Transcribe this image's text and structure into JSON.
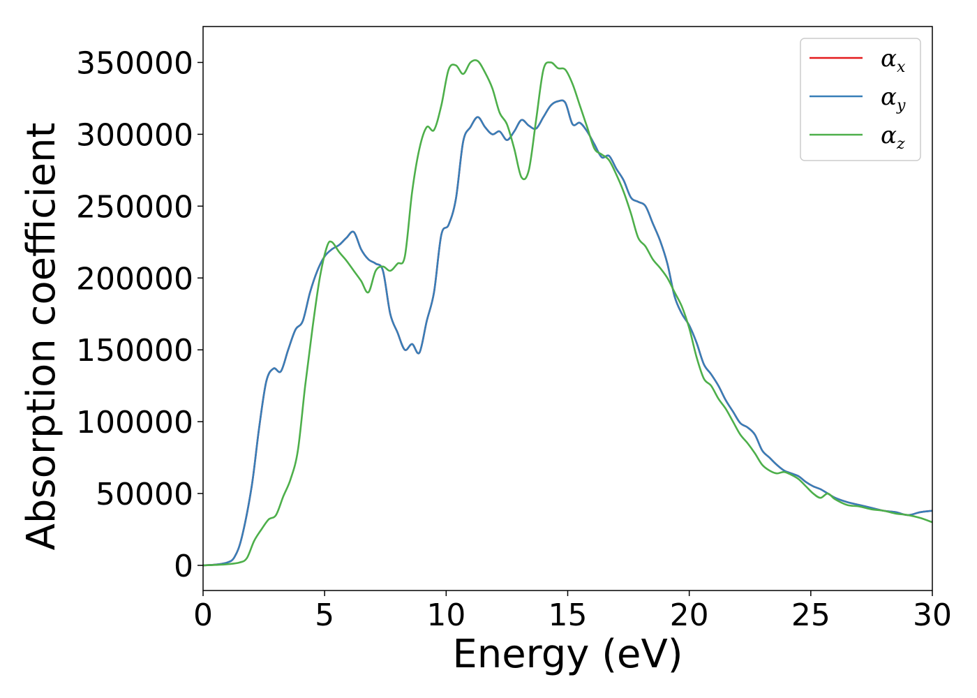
{
  "chart_data": {
    "type": "line",
    "title": "",
    "xlabel": "Energy (eV)",
    "ylabel": "Absorption coefficient",
    "xlim": [
      0,
      30
    ],
    "ylim": [
      -17500,
      375000
    ],
    "xticks": [
      0,
      5,
      10,
      15,
      20,
      25,
      30
    ],
    "yticks": [
      0,
      50000,
      100000,
      150000,
      200000,
      250000,
      300000,
      350000
    ],
    "grid": false,
    "legend_position": "top-right",
    "series": [
      {
        "name": "α_x",
        "symbol": "α",
        "subscript": "x",
        "color": "#e41a1c",
        "x": [
          0,
          0.5,
          1,
          1.3,
          1.6,
          2,
          2.3,
          2.6,
          2.9,
          3.2,
          3.5,
          3.8,
          4.1,
          4.4,
          4.7,
          5,
          5.3,
          5.6,
          5.9,
          6.2,
          6.5,
          6.8,
          7.1,
          7.4,
          7.7,
          8,
          8.3,
          8.6,
          8.9,
          9.2,
          9.5,
          9.8,
          10.1,
          10.4,
          10.7,
          11,
          11.3,
          11.6,
          11.9,
          12.2,
          12.5,
          12.8,
          13.1,
          13.4,
          13.7,
          14,
          14.3,
          14.6,
          14.9,
          15.2,
          15.5,
          15.8,
          16.1,
          16.4,
          16.7,
          17,
          17.3,
          17.6,
          17.9,
          18.2,
          18.5,
          18.8,
          19.1,
          19.4,
          19.7,
          20,
          20.3,
          20.6,
          20.9,
          21.2,
          21.5,
          21.8,
          22.1,
          22.4,
          22.7,
          23,
          23.3,
          23.6,
          23.9,
          24.2,
          24.5,
          24.8,
          25.1,
          25.4,
          25.7,
          26,
          26.5,
          27,
          27.5,
          28,
          28.5,
          29,
          29.5,
          30
        ],
        "values": [
          0,
          500,
          2000,
          6000,
          20000,
          55000,
          95000,
          128000,
          137000,
          135000,
          150000,
          164000,
          170000,
          190000,
          205000,
          215000,
          220000,
          223000,
          228000,
          232000,
          220000,
          213000,
          210000,
          205000,
          175000,
          162000,
          150000,
          154000,
          148000,
          170000,
          190000,
          230000,
          237000,
          255000,
          295000,
          305000,
          312000,
          305000,
          300000,
          302000,
          296000,
          302000,
          310000,
          306000,
          304000,
          312000,
          320000,
          323000,
          322000,
          307000,
          308000,
          302000,
          293000,
          284000,
          285000,
          276000,
          268000,
          256000,
          253000,
          250000,
          238000,
          226000,
          210000,
          187000,
          175000,
          167000,
          155000,
          140000,
          133000,
          125000,
          115000,
          107000,
          99000,
          96000,
          91000,
          80000,
          75000,
          70000,
          66000,
          64000,
          62000,
          58000,
          55000,
          53000,
          50000,
          47000,
          44000,
          42000,
          40000,
          38000,
          37000,
          35000,
          37000,
          38000
        ]
      },
      {
        "name": "α_y",
        "symbol": "α",
        "subscript": "y",
        "color": "#377eb8",
        "x": [
          0,
          0.5,
          1,
          1.3,
          1.6,
          2,
          2.3,
          2.6,
          2.9,
          3.2,
          3.5,
          3.8,
          4.1,
          4.4,
          4.7,
          5,
          5.3,
          5.6,
          5.9,
          6.2,
          6.5,
          6.8,
          7.1,
          7.4,
          7.7,
          8,
          8.3,
          8.6,
          8.9,
          9.2,
          9.5,
          9.8,
          10.1,
          10.4,
          10.7,
          11,
          11.3,
          11.6,
          11.9,
          12.2,
          12.5,
          12.8,
          13.1,
          13.4,
          13.7,
          14,
          14.3,
          14.6,
          14.9,
          15.2,
          15.5,
          15.8,
          16.1,
          16.4,
          16.7,
          17,
          17.3,
          17.6,
          17.9,
          18.2,
          18.5,
          18.8,
          19.1,
          19.4,
          19.7,
          20,
          20.3,
          20.6,
          20.9,
          21.2,
          21.5,
          21.8,
          22.1,
          22.4,
          22.7,
          23,
          23.3,
          23.6,
          23.9,
          24.2,
          24.5,
          24.8,
          25.1,
          25.4,
          25.7,
          26,
          26.5,
          27,
          27.5,
          28,
          28.5,
          29,
          29.5,
          30
        ],
        "values": [
          0,
          500,
          2000,
          6000,
          20000,
          55000,
          95000,
          128000,
          137000,
          135000,
          150000,
          164000,
          170000,
          190000,
          205000,
          215000,
          220000,
          223000,
          228000,
          232000,
          220000,
          213000,
          210000,
          205000,
          175000,
          162000,
          150000,
          154000,
          148000,
          170000,
          190000,
          230000,
          237000,
          255000,
          295000,
          305000,
          312000,
          305000,
          300000,
          302000,
          296000,
          302000,
          310000,
          306000,
          304000,
          312000,
          320000,
          323000,
          322000,
          307000,
          308000,
          302000,
          293000,
          284000,
          285000,
          276000,
          268000,
          256000,
          253000,
          250000,
          238000,
          226000,
          210000,
          187000,
          175000,
          167000,
          155000,
          140000,
          133000,
          125000,
          115000,
          107000,
          99000,
          96000,
          91000,
          80000,
          75000,
          70000,
          66000,
          64000,
          62000,
          58000,
          55000,
          53000,
          50000,
          47000,
          44000,
          42000,
          40000,
          38000,
          37000,
          35000,
          37000,
          38000
        ]
      },
      {
        "name": "α_z",
        "symbol": "α",
        "subscript": "z",
        "color": "#4daf4a",
        "x": [
          0,
          0.5,
          1,
          1.5,
          1.8,
          2.1,
          2.4,
          2.7,
          3,
          3.3,
          3.6,
          3.9,
          4.2,
          4.5,
          4.8,
          5.1,
          5.3,
          5.6,
          5.9,
          6.2,
          6.5,
          6.8,
          7.1,
          7.4,
          7.7,
          8,
          8.3,
          8.6,
          8.9,
          9.2,
          9.5,
          9.8,
          10.1,
          10.4,
          10.7,
          11,
          11.3,
          11.6,
          11.9,
          12.2,
          12.5,
          12.8,
          13.1,
          13.4,
          13.7,
          14,
          14.3,
          14.6,
          14.9,
          15.2,
          15.5,
          15.8,
          16.1,
          16.4,
          16.7,
          17,
          17.3,
          17.6,
          17.9,
          18.2,
          18.5,
          18.8,
          19.1,
          19.4,
          19.7,
          20,
          20.3,
          20.6,
          20.9,
          21.2,
          21.5,
          21.8,
          22.1,
          22.4,
          22.7,
          23,
          23.3,
          23.6,
          23.9,
          24.2,
          24.5,
          24.8,
          25.1,
          25.4,
          25.7,
          26,
          26.5,
          27,
          27.5,
          28,
          28.5,
          29,
          29.5,
          30
        ],
        "values": [
          0,
          300,
          800,
          2000,
          5000,
          17000,
          25000,
          32000,
          35000,
          48000,
          60000,
          80000,
          125000,
          165000,
          200000,
          222000,
          225000,
          218000,
          212000,
          205000,
          198000,
          190000,
          205000,
          208000,
          205000,
          210000,
          215000,
          260000,
          290000,
          305000,
          303000,
          320000,
          345000,
          348000,
          342000,
          350000,
          351000,
          343000,
          332000,
          315000,
          307000,
          290000,
          270000,
          275000,
          310000,
          345000,
          350000,
          346000,
          345000,
          335000,
          320000,
          305000,
          290000,
          286000,
          282000,
          272000,
          260000,
          245000,
          228000,
          222000,
          213000,
          207000,
          200000,
          190000,
          180000,
          165000,
          145000,
          130000,
          125000,
          116000,
          109000,
          100000,
          91000,
          85000,
          78000,
          70000,
          66000,
          64000,
          65000,
          63000,
          60000,
          55000,
          50000,
          47000,
          50000,
          46000,
          42000,
          41000,
          39000,
          38000,
          36000,
          35000,
          33000,
          30000
        ]
      }
    ]
  }
}
